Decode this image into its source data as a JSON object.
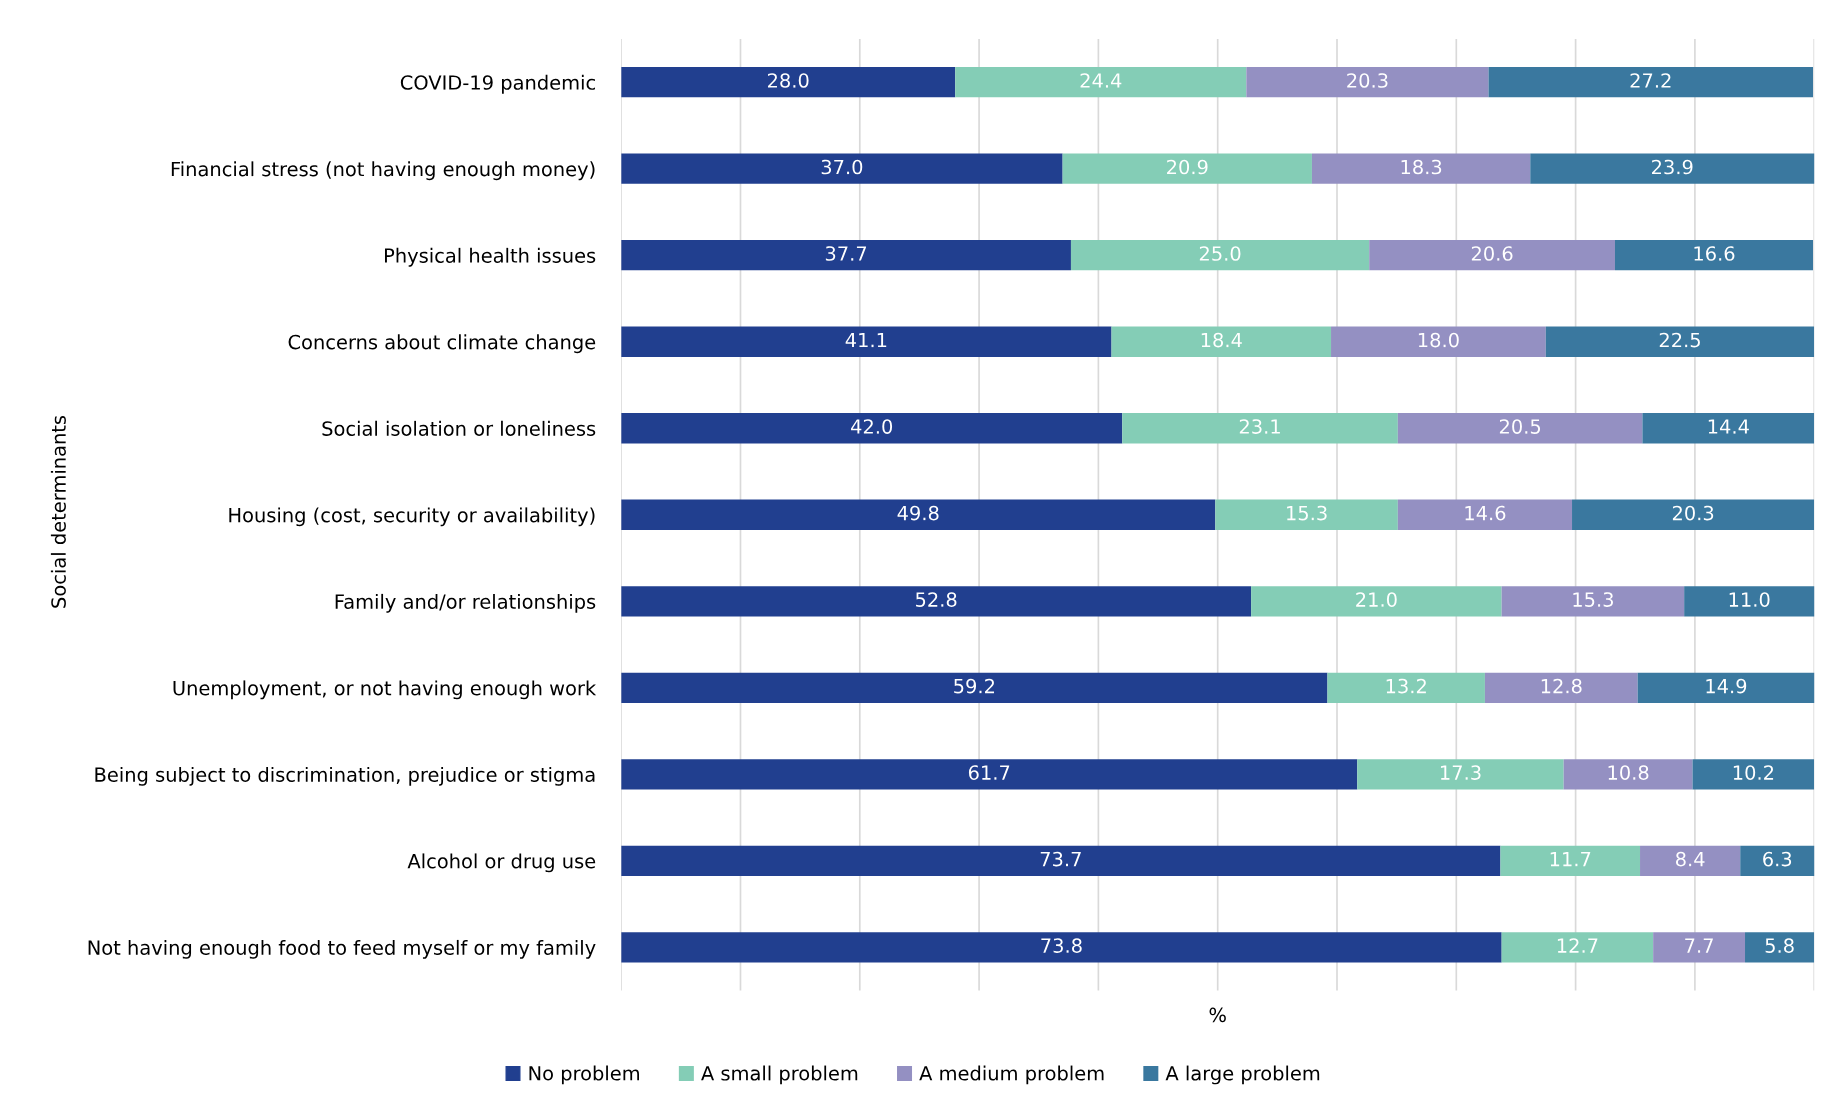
{
  "chart_data": {
    "type": "bar",
    "orientation": "horizontal",
    "stacked": true,
    "xlabel": "%",
    "ylabel": "Social determinants",
    "categories": [
      "COVID-19 pandemic",
      "Financial stress (not having enough money)",
      "Physical health issues",
      "Concerns about climate change",
      "Social isolation or loneliness",
      "Housing (cost, security or availability)",
      "Family and/or relationships",
      "Unemployment, or not having enough work",
      "Being subject to discrimination, prejudice or stigma",
      "Alcohol or drug use",
      "Not having enough food to feed myself or my family"
    ],
    "series": [
      {
        "name": "No problem",
        "color": "#213f8f",
        "values": [
          28,
          37,
          37.7,
          41.1,
          42,
          49.8,
          52.8,
          59.2,
          61.7,
          73.7,
          73.8
        ],
        "value_labels": [
          "28.0",
          "37.0",
          "37.7",
          "41.1",
          "42.0",
          "49.8",
          "52.8",
          "59.2",
          "61.7",
          "73.7",
          "73.8"
        ]
      },
      {
        "name": "A small problem",
        "color": "#84cdb6",
        "values": [
          24.4,
          20.9,
          25,
          18.4,
          23.1,
          15.3,
          21,
          13.2,
          17.3,
          11.7,
          12.7
        ],
        "value_labels": [
          "24.4",
          "20.9",
          "25.0",
          "18.4",
          "23.1",
          "15.3",
          "21.0",
          "13.2",
          "17.3",
          "11.7",
          "12.7"
        ]
      },
      {
        "name": "A medium problem",
        "color": "#9490c2",
        "values": [
          20.3,
          18.3,
          20.6,
          18,
          20.5,
          14.6,
          15.3,
          12.8,
          10.8,
          8.4,
          7.7
        ],
        "value_labels": [
          "20.3",
          "18.3",
          "20.6",
          "18.0",
          "20.5",
          "14.6",
          "15.3",
          "12.8",
          "10.8",
          "8.4",
          "7.7"
        ]
      },
      {
        "name": "A large problem",
        "color": "#3a789f",
        "values": [
          27.2,
          23.9,
          16.6,
          22.5,
          14.4,
          20.3,
          11,
          14.9,
          10.2,
          6.3,
          5.8
        ],
        "value_labels": [
          "27.2",
          "23.9",
          "16.6",
          "22.5",
          "14.4",
          "20.3",
          "11.0",
          "14.9",
          "10.2",
          "6.3",
          "5.8"
        ]
      }
    ],
    "xlim": [
      0,
      100
    ],
    "xticks": [
      {
        "value": 0,
        "label": null
      },
      {
        "value": 10,
        "label": null
      },
      {
        "value": 20,
        "label": null
      },
      {
        "value": 30,
        "label": null
      },
      {
        "value": 40,
        "label": null
      },
      {
        "value": 50,
        "label": null
      },
      {
        "value": 60,
        "label": null
      },
      {
        "value": 70,
        "label": null
      },
      {
        "value": 80,
        "label": null
      },
      {
        "value": 90,
        "label": null
      },
      {
        "value": 100,
        "label": null
      }
    ],
    "tick_labels": "y",
    "grid": "x",
    "legend": "bottom"
  }
}
